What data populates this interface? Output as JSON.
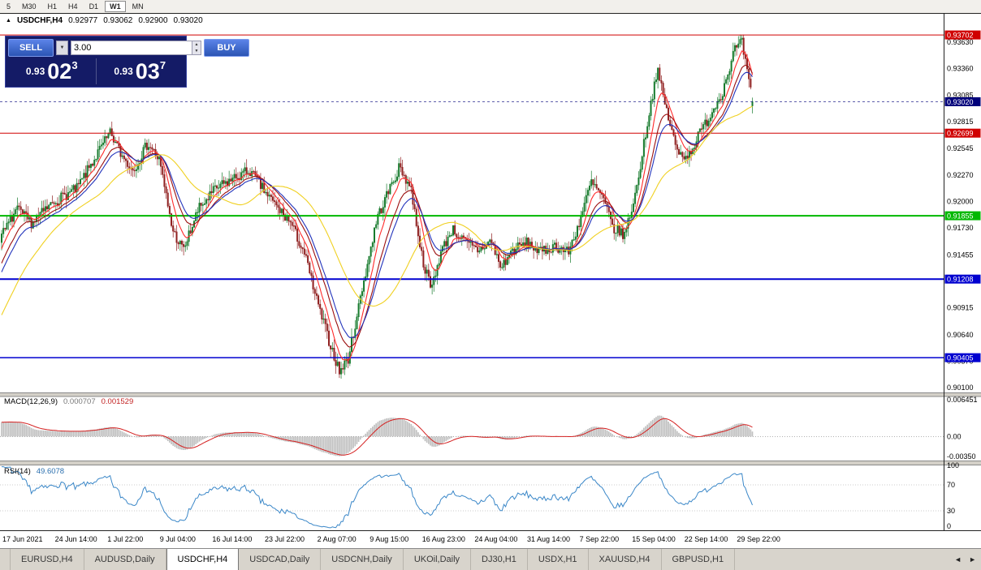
{
  "toolbar": {
    "periods": [
      "5",
      "M30",
      "H1",
      "H4",
      "D1",
      "W1",
      "MN"
    ],
    "active": "W1"
  },
  "chart": {
    "collapse_icon": "▲",
    "symbol": "USDCHF,H4",
    "open": "0.92977",
    "high": "0.93062",
    "low": "0.92900",
    "close": "0.93020"
  },
  "trade_panel": {
    "sell_label": "SELL",
    "buy_label": "BUY",
    "volume": "3.00",
    "dropdown_icon": "▼",
    "spin_up_icon": "▲",
    "spin_down_icon": "▼",
    "sell_price": {
      "prefix": "0.93",
      "big": "02",
      "sup": "3"
    },
    "buy_price": {
      "prefix": "0.93",
      "big": "03",
      "sup": "7"
    },
    "panel_bg": "#141b66",
    "button_color": "#2b55b4"
  },
  "price_axis": {
    "labels": [
      "0.93630",
      "0.93360",
      "0.93085",
      "0.92815",
      "0.92545",
      "0.92270",
      "0.92000",
      "0.91730",
      "0.91455",
      "0.90915",
      "0.90640",
      "0.90370",
      "0.90100"
    ]
  },
  "time_axis": {
    "labels": [
      "17 Jun 2021",
      "24 Jun 14:00",
      "1 Jul 22:00",
      "9 Jul 04:00",
      "16 Jul 14:00",
      "23 Jul 22:00",
      "2 Aug 07:00",
      "9 Aug 15:00",
      "16 Aug 23:00",
      "24 Aug 04:00",
      "31 Aug 14:00",
      "7 Sep 22:00",
      "15 Sep 04:00",
      "22 Sep 14:00",
      "29 Sep 22:00"
    ]
  },
  "macd_panel": {
    "name": "MACD(12,26,9)",
    "value_main": "0.000707",
    "value_signal": "0.001529",
    "axis": [
      {
        "label": "0.006451",
        "value": 0.006451
      },
      {
        "label": "0.00",
        "value": 0
      },
      {
        "label": "-0.00350",
        "value": -0.0035
      }
    ]
  },
  "rsi_panel": {
    "name": "RSI(14)",
    "value": "49.6078",
    "axis": [
      {
        "label": "100",
        "value": 100
      },
      {
        "label": "70",
        "value": 70
      },
      {
        "label": "30",
        "value": 30
      },
      {
        "label": "0",
        "value": 0
      }
    ]
  },
  "tabbar": {
    "tabs": [
      "EURUSD,H4",
      "AUDUSD,Daily",
      "USDCHF,H4",
      "USDCAD,Daily",
      "USDCNH,Daily",
      "UKOil,Daily",
      "DJ30,H1",
      "USDX,H1",
      "XAUUSD,H4",
      "GBPUSD,H1"
    ],
    "active": "USDCHF,H4",
    "scroll_left": "◄",
    "scroll_right": "►"
  },
  "chart_data": {
    "type": "candlestick",
    "symbol": "USDCHF",
    "timeframe": "H4",
    "ohlc_current": {
      "open": 0.92977,
      "high": 0.93062,
      "low": 0.929,
      "close": 0.9302
    },
    "ylim": [
      0.9005,
      0.9391
    ],
    "n_candles": 430,
    "history_bars": 60,
    "history_start_price": 0.8945,
    "last_close": 0.9302,
    "up_color": "#167a2c",
    "down_color": "#8f1f1f",
    "price_path": [
      [
        0.0,
        0.9165
      ],
      [
        0.02,
        0.9192
      ],
      [
        0.04,
        0.9178
      ],
      [
        0.07,
        0.92
      ],
      [
        0.1,
        0.9213
      ],
      [
        0.13,
        0.9252
      ],
      [
        0.145,
        0.927
      ],
      [
        0.16,
        0.9247
      ],
      [
        0.175,
        0.9232
      ],
      [
        0.195,
        0.926
      ],
      [
        0.21,
        0.9242
      ],
      [
        0.228,
        0.917
      ],
      [
        0.242,
        0.915
      ],
      [
        0.262,
        0.9192
      ],
      [
        0.285,
        0.9213
      ],
      [
        0.31,
        0.9224
      ],
      [
        0.33,
        0.9232
      ],
      [
        0.348,
        0.9213
      ],
      [
        0.365,
        0.9196
      ],
      [
        0.385,
        0.9178
      ],
      [
        0.403,
        0.9148
      ],
      [
        0.42,
        0.9098
      ],
      [
        0.436,
        0.9058
      ],
      [
        0.45,
        0.9026
      ],
      [
        0.462,
        0.904
      ],
      [
        0.48,
        0.911
      ],
      [
        0.5,
        0.9183
      ],
      [
        0.515,
        0.921
      ],
      [
        0.53,
        0.9235
      ],
      [
        0.545,
        0.9214
      ],
      [
        0.56,
        0.9143
      ],
      [
        0.572,
        0.911
      ],
      [
        0.585,
        0.9148
      ],
      [
        0.6,
        0.9172
      ],
      [
        0.618,
        0.9158
      ],
      [
        0.635,
        0.915
      ],
      [
        0.652,
        0.916
      ],
      [
        0.665,
        0.9132
      ],
      [
        0.68,
        0.915
      ],
      [
        0.7,
        0.9158
      ],
      [
        0.718,
        0.9148
      ],
      [
        0.737,
        0.9155
      ],
      [
        0.755,
        0.9148
      ],
      [
        0.77,
        0.918
      ],
      [
        0.785,
        0.922
      ],
      [
        0.8,
        0.9205
      ],
      [
        0.815,
        0.9172
      ],
      [
        0.83,
        0.9166
      ],
      [
        0.845,
        0.921
      ],
      [
        0.86,
        0.928
      ],
      [
        0.873,
        0.9335
      ],
      [
        0.886,
        0.9292
      ],
      [
        0.9,
        0.925
      ],
      [
        0.915,
        0.9247
      ],
      [
        0.93,
        0.927
      ],
      [
        0.945,
        0.929
      ],
      [
        0.96,
        0.9312
      ],
      [
        0.976,
        0.9355
      ],
      [
        0.986,
        0.9362
      ],
      [
        1.0,
        0.9302
      ]
    ],
    "levels": [
      {
        "price": 0.93702,
        "label": "0.93702",
        "color": "#d00000",
        "width": 1
      },
      {
        "price": 0.92699,
        "label": "0.92699",
        "color": "#d00000",
        "width": 1
      },
      {
        "price": 0.91855,
        "label": "0.91855",
        "color": "#00b800",
        "width": 2
      },
      {
        "price": 0.91208,
        "label": "0.91208",
        "color": "#0000d0",
        "width": 2
      },
      {
        "price": 0.90405,
        "label": "0.90405",
        "color": "#0000d0",
        "width": 1.5
      }
    ],
    "current_price": {
      "value": 0.9302,
      "label": "0.93020",
      "color": "#00007a"
    },
    "moving_averages": [
      {
        "name": "ma-fast-red",
        "type": "ema",
        "period": 8,
        "color": "#ff2a2a"
      },
      {
        "name": "ma-mid-darkred",
        "type": "ema",
        "period": 16,
        "color": "#9b1010"
      },
      {
        "name": "ma-slow-blue",
        "type": "ema",
        "period": 21,
        "color": "#2233bb"
      },
      {
        "name": "ma-slowest-yellow",
        "type": "sma",
        "period": 45,
        "color": "#f0d020"
      }
    ],
    "macd": {
      "fast": 12,
      "slow": 26,
      "signal": 9,
      "range": [
        -0.0042,
        0.007
      ],
      "hist_color": "#c0c0c0",
      "signal_color": "#d42020"
    },
    "rsi": {
      "period": 14,
      "color": "#3a87c8",
      "levels": [
        70,
        30
      ]
    }
  }
}
